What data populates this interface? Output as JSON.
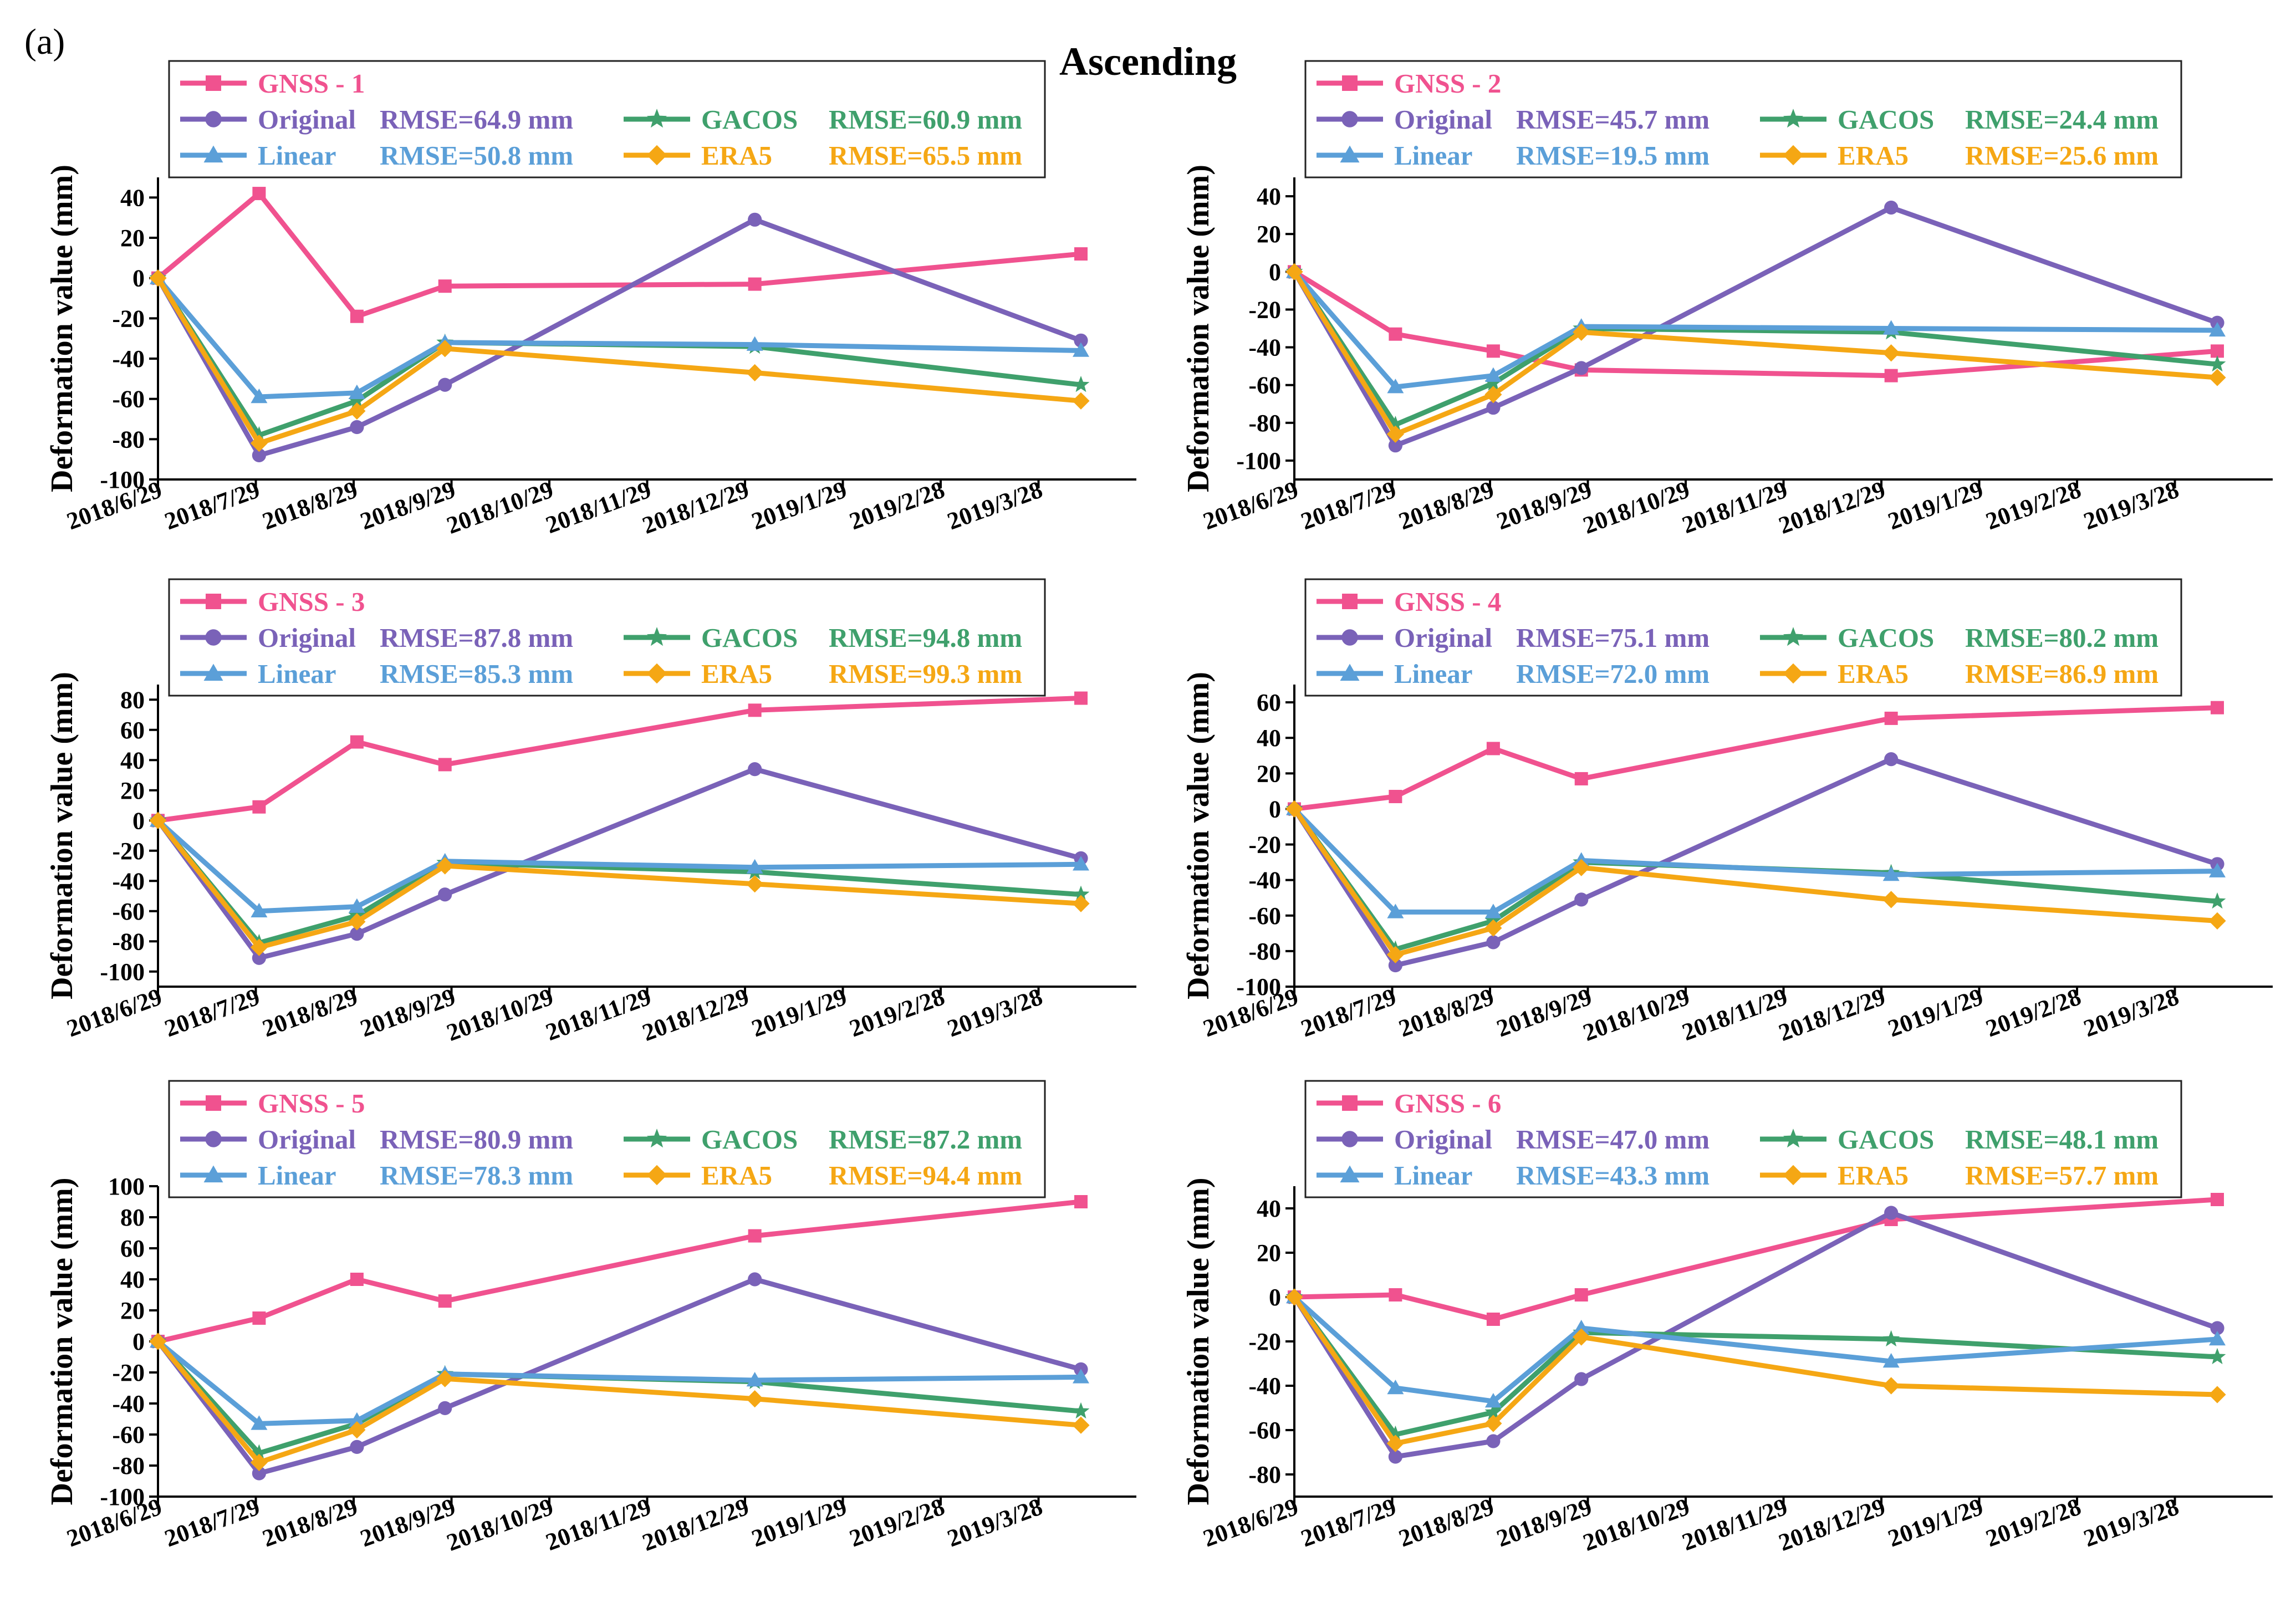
{
  "panel_label": "(a)",
  "figure_title": "Ascending",
  "colors": {
    "gnss": "#F0528F",
    "original": "#7A62B8",
    "gacos": "#3FA06C",
    "linear": "#5B9FD8",
    "era5": "#F5A714"
  },
  "x_tick_labels": [
    "2018/6/29",
    "2018/7/29",
    "2018/8/29",
    "2018/9/29",
    "2018/10/29",
    "2018/11/29",
    "2018/12/29",
    "2019/1/29",
    "2019/2/28",
    "2019/3/28"
  ],
  "chart_data": [
    {
      "type": "line",
      "ylabel": "Deformation value (mm)",
      "ylim": [
        -100,
        50
      ],
      "yticks": [
        -100,
        -80,
        -60,
        -40,
        -20,
        0,
        20,
        40
      ],
      "x": [
        0,
        31,
        61,
        88,
        183,
        283
      ],
      "categories": [
        "2018/6/29",
        "2018/7/29",
        "2018/8/29",
        "2018/9/29",
        "2018/10/29",
        "2018/11/29",
        "2018/12/29",
        "2019/1/29",
        "2019/2/28",
        "2019/3/28"
      ],
      "legend": {
        "gnss": "GNSS - 1",
        "original": "Original",
        "original_rmse": "RMSE=64.9 mm",
        "gacos": "GACOS",
        "gacos_rmse": "RMSE=60.9 mm",
        "linear": "Linear",
        "linear_rmse": "RMSE=50.8 mm",
        "era5": "ERA5",
        "era5_rmse": "RMSE=65.5 mm"
      },
      "series": [
        {
          "name": "GNSS",
          "values": [
            0,
            42,
            -19,
            -4,
            -3,
            12
          ]
        },
        {
          "name": "Original",
          "values": [
            0,
            -88,
            -74,
            -53,
            29,
            -31
          ]
        },
        {
          "name": "GACOS",
          "values": [
            0,
            -78,
            -61,
            -32,
            -34,
            -53
          ]
        },
        {
          "name": "Linear",
          "values": [
            0,
            -59,
            -57,
            -32,
            -33,
            -36
          ]
        },
        {
          "name": "ERA5",
          "values": [
            0,
            -82,
            -66,
            -35,
            -47,
            -61
          ]
        }
      ]
    },
    {
      "type": "line",
      "ylabel": "Deformation value (mm)",
      "ylim": [
        -110,
        50
      ],
      "yticks": [
        -100,
        -80,
        -60,
        -40,
        -20,
        0,
        20,
        40
      ],
      "x": [
        0,
        31,
        61,
        88,
        183,
        283
      ],
      "categories": [
        "2018/6/29",
        "2018/7/29",
        "2018/8/29",
        "2018/9/29",
        "2018/10/29",
        "2018/11/29",
        "2018/12/29",
        "2019/1/29",
        "2019/2/28",
        "2019/3/28"
      ],
      "legend": {
        "gnss": "GNSS - 2",
        "original": "Original",
        "original_rmse": "RMSE=45.7 mm",
        "gacos": "GACOS",
        "gacos_rmse": "RMSE=24.4 mm",
        "linear": "Linear",
        "linear_rmse": "RMSE=19.5 mm",
        "era5": "ERA5",
        "era5_rmse": "RMSE=25.6 mm"
      },
      "series": [
        {
          "name": "GNSS",
          "values": [
            0,
            -33,
            -42,
            -52,
            -55,
            -42
          ]
        },
        {
          "name": "Original",
          "values": [
            0,
            -92,
            -72,
            -51,
            34,
            -27
          ]
        },
        {
          "name": "GACOS",
          "values": [
            0,
            -81,
            -59,
            -30,
            -32,
            -49
          ]
        },
        {
          "name": "Linear",
          "values": [
            0,
            -61,
            -55,
            -29,
            -30,
            -31
          ]
        },
        {
          "name": "ERA5",
          "values": [
            0,
            -86,
            -65,
            -32,
            -43,
            -56
          ]
        }
      ]
    },
    {
      "type": "line",
      "ylabel": "Deformation value (mm)",
      "ylim": [
        -110,
        90
      ],
      "yticks": [
        -100,
        -80,
        -60,
        -40,
        -20,
        0,
        20,
        40,
        60,
        80
      ],
      "x": [
        0,
        31,
        61,
        88,
        183,
        283
      ],
      "categories": [
        "2018/6/29",
        "2018/7/29",
        "2018/8/29",
        "2018/9/29",
        "2018/10/29",
        "2018/11/29",
        "2018/12/29",
        "2019/1/29",
        "2019/2/28",
        "2019/3/28"
      ],
      "legend": {
        "gnss": "GNSS - 3",
        "original": "Original",
        "original_rmse": "RMSE=87.8 mm",
        "gacos": "GACOS",
        "gacos_rmse": "RMSE=94.8 mm",
        "linear": "Linear",
        "linear_rmse": "RMSE=85.3 mm",
        "era5": "ERA5",
        "era5_rmse": "RMSE=99.3 mm"
      },
      "series": [
        {
          "name": "GNSS",
          "values": [
            0,
            9,
            52,
            37,
            73,
            81
          ]
        },
        {
          "name": "Original",
          "values": [
            0,
            -91,
            -75,
            -49,
            34,
            -25
          ]
        },
        {
          "name": "GACOS",
          "values": [
            0,
            -81,
            -63,
            -28,
            -34,
            -49
          ]
        },
        {
          "name": "Linear",
          "values": [
            0,
            -60,
            -57,
            -27,
            -31,
            -29
          ]
        },
        {
          "name": "ERA5",
          "values": [
            0,
            -84,
            -67,
            -30,
            -42,
            -55
          ]
        }
      ]
    },
    {
      "type": "line",
      "ylabel": "Deformation value (mm)",
      "ylim": [
        -100,
        70
      ],
      "yticks": [
        -100,
        -80,
        -60,
        -40,
        -20,
        0,
        20,
        40,
        60
      ],
      "x": [
        0,
        31,
        61,
        88,
        183,
        283
      ],
      "categories": [
        "2018/6/29",
        "2018/7/29",
        "2018/8/29",
        "2018/9/29",
        "2018/10/29",
        "2018/11/29",
        "2018/12/29",
        "2019/1/29",
        "2019/2/28",
        "2019/3/28"
      ],
      "legend": {
        "gnss": "GNSS - 4",
        "original": "Original",
        "original_rmse": "RMSE=75.1 mm",
        "gacos": "GACOS",
        "gacos_rmse": "RMSE=80.2 mm",
        "linear": "Linear",
        "linear_rmse": "RMSE=72.0 mm",
        "era5": "ERA5",
        "era5_rmse": "RMSE=86.9 mm"
      },
      "series": [
        {
          "name": "GNSS",
          "values": [
            0,
            7,
            34,
            17,
            51,
            57
          ]
        },
        {
          "name": "Original",
          "values": [
            0,
            -88,
            -75,
            -51,
            28,
            -31
          ]
        },
        {
          "name": "GACOS",
          "values": [
            0,
            -79,
            -63,
            -30,
            -36,
            -52
          ]
        },
        {
          "name": "Linear",
          "values": [
            0,
            -58,
            -58,
            -29,
            -37,
            -35
          ]
        },
        {
          "name": "ERA5",
          "values": [
            0,
            -82,
            -67,
            -33,
            -51,
            -63
          ]
        }
      ]
    },
    {
      "type": "line",
      "ylabel": "Deformation value (mm)",
      "ylim": [
        -100,
        100
      ],
      "yticks": [
        -100,
        -80,
        -60,
        -40,
        -20,
        0,
        20,
        40,
        60,
        80,
        100
      ],
      "x": [
        0,
        31,
        61,
        88,
        183,
        283
      ],
      "categories": [
        "2018/6/29",
        "2018/7/29",
        "2018/8/29",
        "2018/9/29",
        "2018/10/29",
        "2018/11/29",
        "2018/12/29",
        "2019/1/29",
        "2019/2/28",
        "2019/3/28"
      ],
      "legend": {
        "gnss": "GNSS - 5",
        "original": "Original",
        "original_rmse": "RMSE=80.9 mm",
        "gacos": "GACOS",
        "gacos_rmse": "RMSE=87.2 mm",
        "linear": "Linear",
        "linear_rmse": "RMSE=78.3 mm",
        "era5": "ERA5",
        "era5_rmse": "RMSE=94.4 mm"
      },
      "series": [
        {
          "name": "GNSS",
          "values": [
            0,
            15,
            40,
            26,
            68,
            90
          ]
        },
        {
          "name": "Original",
          "values": [
            0,
            -85,
            -68,
            -43,
            40,
            -18
          ]
        },
        {
          "name": "GACOS",
          "values": [
            0,
            -72,
            -53,
            -21,
            -26,
            -45
          ]
        },
        {
          "name": "Linear",
          "values": [
            0,
            -53,
            -51,
            -21,
            -25,
            -23
          ]
        },
        {
          "name": "ERA5",
          "values": [
            0,
            -78,
            -57,
            -24,
            -37,
            -54
          ]
        }
      ]
    },
    {
      "type": "line",
      "ylabel": "Deformation value (mm)",
      "ylim": [
        -90,
        50
      ],
      "yticks": [
        -80,
        -60,
        -40,
        -20,
        0,
        20,
        40
      ],
      "x": [
        0,
        31,
        61,
        88,
        183,
        283
      ],
      "categories": [
        "2018/6/29",
        "2018/7/29",
        "2018/8/29",
        "2018/9/29",
        "2018/10/29",
        "2018/11/29",
        "2018/12/29",
        "2019/1/29",
        "2019/2/28",
        "2019/3/28"
      ],
      "legend": {
        "gnss": "GNSS - 6",
        "original": "Original",
        "original_rmse": "RMSE=47.0 mm",
        "gacos": "GACOS",
        "gacos_rmse": "RMSE=48.1 mm",
        "linear": "Linear",
        "linear_rmse": "RMSE=43.3 mm",
        "era5": "ERA5",
        "era5_rmse": "RMSE=57.7 mm"
      },
      "series": [
        {
          "name": "GNSS",
          "values": [
            0,
            1,
            -10,
            1,
            35,
            44
          ]
        },
        {
          "name": "Original",
          "values": [
            0,
            -72,
            -65,
            -37,
            38,
            -14
          ]
        },
        {
          "name": "GACOS",
          "values": [
            0,
            -62,
            -52,
            -16,
            -19,
            -27
          ]
        },
        {
          "name": "Linear",
          "values": [
            0,
            -41,
            -47,
            -14,
            -29,
            -19
          ]
        },
        {
          "name": "ERA5",
          "values": [
            0,
            -66,
            -57,
            -18,
            -40,
            -44
          ]
        }
      ]
    }
  ]
}
